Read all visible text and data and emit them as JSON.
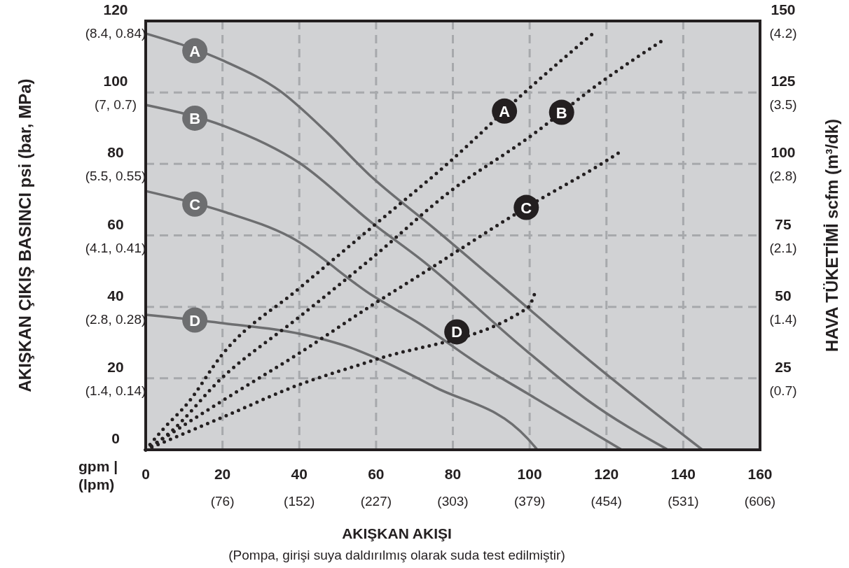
{
  "chart_data": {
    "type": "line",
    "xlabel": "AKIŞKAN AKIŞI",
    "ylabel": "AKIŞKAN ÇIKIŞ BASINCI psi (bar, MPa)",
    "y2label": "HAVA TÜKETİMİ scfm (m³/dk)",
    "annotations": [
      "gpm |\n(lpm)",
      "(Pompa, girişi suya daldırılmış olarak suda test edilmiştir)",
      "(76)",
      "(152)",
      "(227)",
      "(303)",
      "(379)",
      "(454)",
      "(531)",
      "(606)",
      "(1.4, 0.14)",
      "(2.8, 0.28)",
      "(4.1, 0.41)",
      "(5.5, 0.55)",
      "(7, 0.7)",
      "(8.4, 0.84)"
    ],
    "y3lim": [
      0,
      4.2
    ],
    "y3ticks": [
      {
        "value": 0.7,
        "label": "(0.7)"
      },
      {
        "value": 1.4,
        "label": "(1.4)"
      },
      {
        "value": 2.1,
        "label": "(2.1)"
      },
      {
        "value": 2.8,
        "label": "(2.8)"
      },
      {
        "value": 3.5,
        "label": "(3.5)"
      },
      {
        "value": 4.2,
        "label": "(4.2)"
      }
    ],
    "xlim": [
      0,
      160
    ],
    "ylim": [
      0,
      120
    ],
    "y2lim": [
      0,
      150
    ],
    "xticks": [
      0,
      20,
      40,
      60,
      80,
      100,
      120,
      140,
      160
    ],
    "yticks": [
      0,
      20,
      40,
      60,
      80,
      100,
      120
    ],
    "y2ticks": [
      25,
      50,
      75,
      100,
      125,
      150
    ],
    "grid": true,
    "series": [
      {
        "name": "A",
        "color": "#6d6e70",
        "line_style": "solid",
        "x": [
          0,
          20.4,
          35,
          47.3,
          58.2,
          75.2,
          99.5,
          116.6,
          145
        ],
        "values": [
          116.5,
          108.8,
          100.4,
          88.7,
          77,
          61.9,
          39.7,
          24.1,
          0
        ]
      },
      {
        "name": "B",
        "color": "#6d6e70",
        "line_style": "solid",
        "x": [
          0,
          20.4,
          40,
          59.3,
          71.5,
          99.5,
          115.3,
          136
        ],
        "values": [
          96.5,
          90.6,
          80.3,
          63.2,
          53.4,
          27.4,
          13.7,
          0
        ]
      },
      {
        "name": "C",
        "color": "#6d6e70",
        "line_style": "solid",
        "x": [
          0,
          20.4,
          37.4,
          59.3,
          71.5,
          87.4,
          99.5,
          124
        ],
        "values": [
          72.4,
          66.6,
          59.7,
          43,
          35.2,
          23.5,
          15.7,
          0
        ]
      },
      {
        "name": "D",
        "color": "#6d6e70",
        "line_style": "solid",
        "x": [
          0,
          20.4,
          40,
          53.3,
          59.3,
          75.2,
          99.5,
          102
        ],
        "values": [
          37.8,
          35.4,
          32.5,
          28.6,
          26,
          17.6,
          3.1,
          0
        ]
      },
      {
        "name": "A",
        "color": "#231f20",
        "line_style": "dotted",
        "axis": "y2",
        "x": [
          0,
          4.6,
          10.8,
          19.9,
          40,
          59.3,
          78.8,
          99.5,
          116.8
        ],
        "values": [
          0,
          7.3,
          16.1,
          33.3,
          56.5,
          78.3,
          100.3,
          126,
          146
        ]
      },
      {
        "name": "B",
        "color": "#231f20",
        "line_style": "dotted",
        "axis": "y2",
        "x": [
          0,
          5.3,
          19.9,
          40,
          59.3,
          79.4,
          99.5,
          119,
          135.4
        ],
        "values": [
          0,
          4.9,
          25.2,
          46.5,
          67.5,
          90.5,
          109,
          129,
          143.9
        ]
      },
      {
        "name": "C",
        "color": "#231f20",
        "line_style": "dotted",
        "axis": "y2",
        "x": [
          0,
          19.9,
          40,
          59.3,
          71.5,
          99.5,
          119,
          123.9
        ],
        "values": [
          0,
          17.1,
          33.8,
          50.9,
          61.2,
          85.1,
          100.3,
          104.5
        ]
      },
      {
        "name": "D",
        "color": "#231f20",
        "line_style": "dotted",
        "axis": "y2",
        "x": [
          0,
          19.9,
          40,
          59.3,
          99.5,
          101.3
        ],
        "values": [
          0,
          11.3,
          22.8,
          31.3,
          49.7,
          54.6
        ]
      }
    ]
  }
}
